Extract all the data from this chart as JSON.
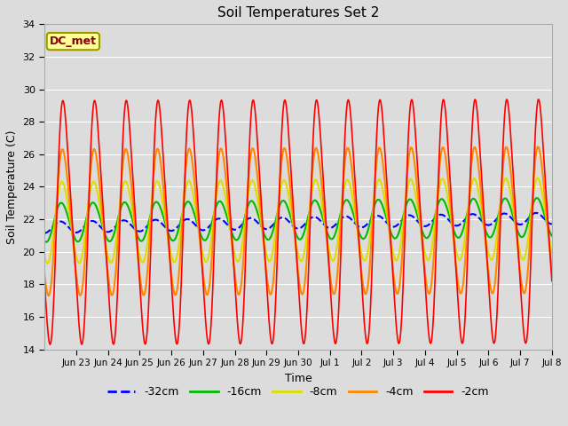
{
  "title": "Soil Temperatures Set 2",
  "xlabel": "Time",
  "ylabel": "Soil Temperature (C)",
  "ylim": [
    14,
    34
  ],
  "yticks": [
    14,
    16,
    18,
    20,
    22,
    24,
    26,
    28,
    30,
    32,
    34
  ],
  "bg_color": "#dcdcdc",
  "fig_color": "#dcdcdc",
  "annotation_text": "DC_met",
  "annotation_bg": "#ffff99",
  "annotation_border": "#999900",
  "series_order": [
    "-32cm",
    "-16cm",
    "-8cm",
    "-4cm",
    "-2cm"
  ],
  "series": {
    "-32cm": {
      "color": "#0000ff",
      "linewidth": 1.5,
      "linestyle": "--",
      "mean": 21.5,
      "amplitude": 0.35,
      "phase": 0.0,
      "trend": 0.035,
      "skew": 0.0
    },
    "-16cm": {
      "color": "#00bb00",
      "linewidth": 1.5,
      "linestyle": "-",
      "mean": 21.8,
      "amplitude": 1.2,
      "phase": 0.25,
      "trend": 0.02,
      "skew": 0.3
    },
    "-8cm": {
      "color": "#dddd00",
      "linewidth": 1.5,
      "linestyle": "-",
      "mean": 21.8,
      "amplitude": 2.5,
      "phase": 0.45,
      "trend": 0.015,
      "skew": 0.5
    },
    "-4cm": {
      "color": "#ff8800",
      "linewidth": 1.5,
      "linestyle": "-",
      "mean": 21.8,
      "amplitude": 4.5,
      "phase": 0.6,
      "trend": 0.01,
      "skew": 0.7
    },
    "-2cm": {
      "color": "#ff0000",
      "linewidth": 1.2,
      "linestyle": "-",
      "mean": 21.8,
      "amplitude": 7.5,
      "phase": 0.8,
      "trend": 0.005,
      "skew": 1.2
    }
  },
  "xlim": [
    0,
    16
  ],
  "xtick_positions": [
    1,
    2,
    3,
    4,
    5,
    6,
    7,
    8,
    9,
    10,
    11,
    12,
    13,
    14,
    15,
    16
  ],
  "xtick_labels": [
    "Jun 23",
    "Jun 24",
    "Jun 25",
    "Jun 26",
    "Jun 27",
    "Jun 28",
    "Jun 29",
    "Jun 30",
    "Jul 1",
    "Jul 2",
    "Jul 3",
    "Jul 4",
    "Jul 5",
    "Jul 6",
    "Jul 7",
    "Jul 8"
  ],
  "legend_labels": [
    "-32cm",
    "-16cm",
    "-8cm",
    "-4cm",
    "-2cm"
  ],
  "legend_colors": [
    "#0000ff",
    "#00bb00",
    "#dddd00",
    "#ff8800",
    "#ff0000"
  ],
  "legend_linestyles": [
    "--",
    "-",
    "-",
    "-",
    "-"
  ]
}
